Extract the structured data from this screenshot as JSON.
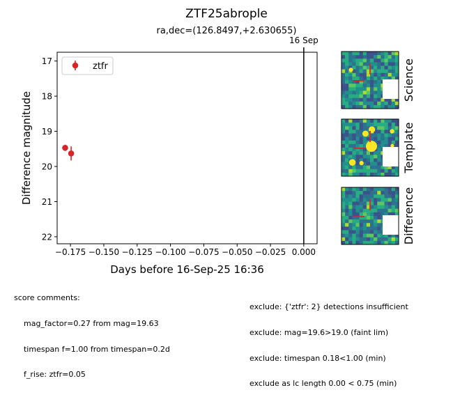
{
  "chart_data": {
    "type": "scatter",
    "title": "ZTF25abrople",
    "subtitle": "ra,dec=(126.8497,+2.630655)",
    "xlabel": "Days before 16-Sep-25 16:36",
    "ylabel": "Difference magnitude",
    "xlim": [
      -0.185,
      0.01
    ],
    "ylim": [
      22.2,
      16.75
    ],
    "y_inverted": true,
    "x_ticks": [
      -0.175,
      -0.15,
      -0.125,
      -0.1,
      -0.075,
      -0.05,
      -0.025,
      0.0
    ],
    "x_tick_labels": [
      "−0.175",
      "−0.150",
      "−0.125",
      "−0.100",
      "−0.075",
      "−0.050",
      "−0.025",
      "0.000"
    ],
    "y_ticks": [
      17,
      18,
      19,
      20,
      21,
      22
    ],
    "y_tick_labels": [
      "17",
      "18",
      "19",
      "20",
      "21",
      "22"
    ],
    "grid": false,
    "legend_position": "top-left",
    "series": [
      {
        "name": "ztfr",
        "color": "#d62728",
        "marker": "circle",
        "points": [
          {
            "x": -0.179,
            "y": 19.47,
            "yerr": 0.09
          },
          {
            "x": -0.1745,
            "y": 19.63,
            "yerr": 0.2
          }
        ]
      }
    ],
    "vline": {
      "x": 0.0,
      "label": "16 Sep",
      "color": "#000000"
    }
  },
  "cutouts": [
    {
      "label": "Science",
      "seed": 11,
      "bright_sources": 1
    },
    {
      "label": "Template",
      "seed": 23,
      "bright_sources": 6
    },
    {
      "label": "Difference",
      "seed": 37,
      "bright_sources": 0
    }
  ],
  "comments": {
    "left": [
      "score comments:",
      "    mag_factor=0.27 from mag=19.63",
      "    timespan f=1.00 from timespan=0.2d",
      "    f_rise: ztfr=0.05"
    ],
    "right": [
      "exclude: {'ztfr': 2} detections insufficient",
      "exclude: mag=19.6>19.0 (faint lim)",
      "exclude: timespan 0.18<1.00 (min)",
      "exclude as lc length 0.00 < 0.75 (min)"
    ]
  }
}
